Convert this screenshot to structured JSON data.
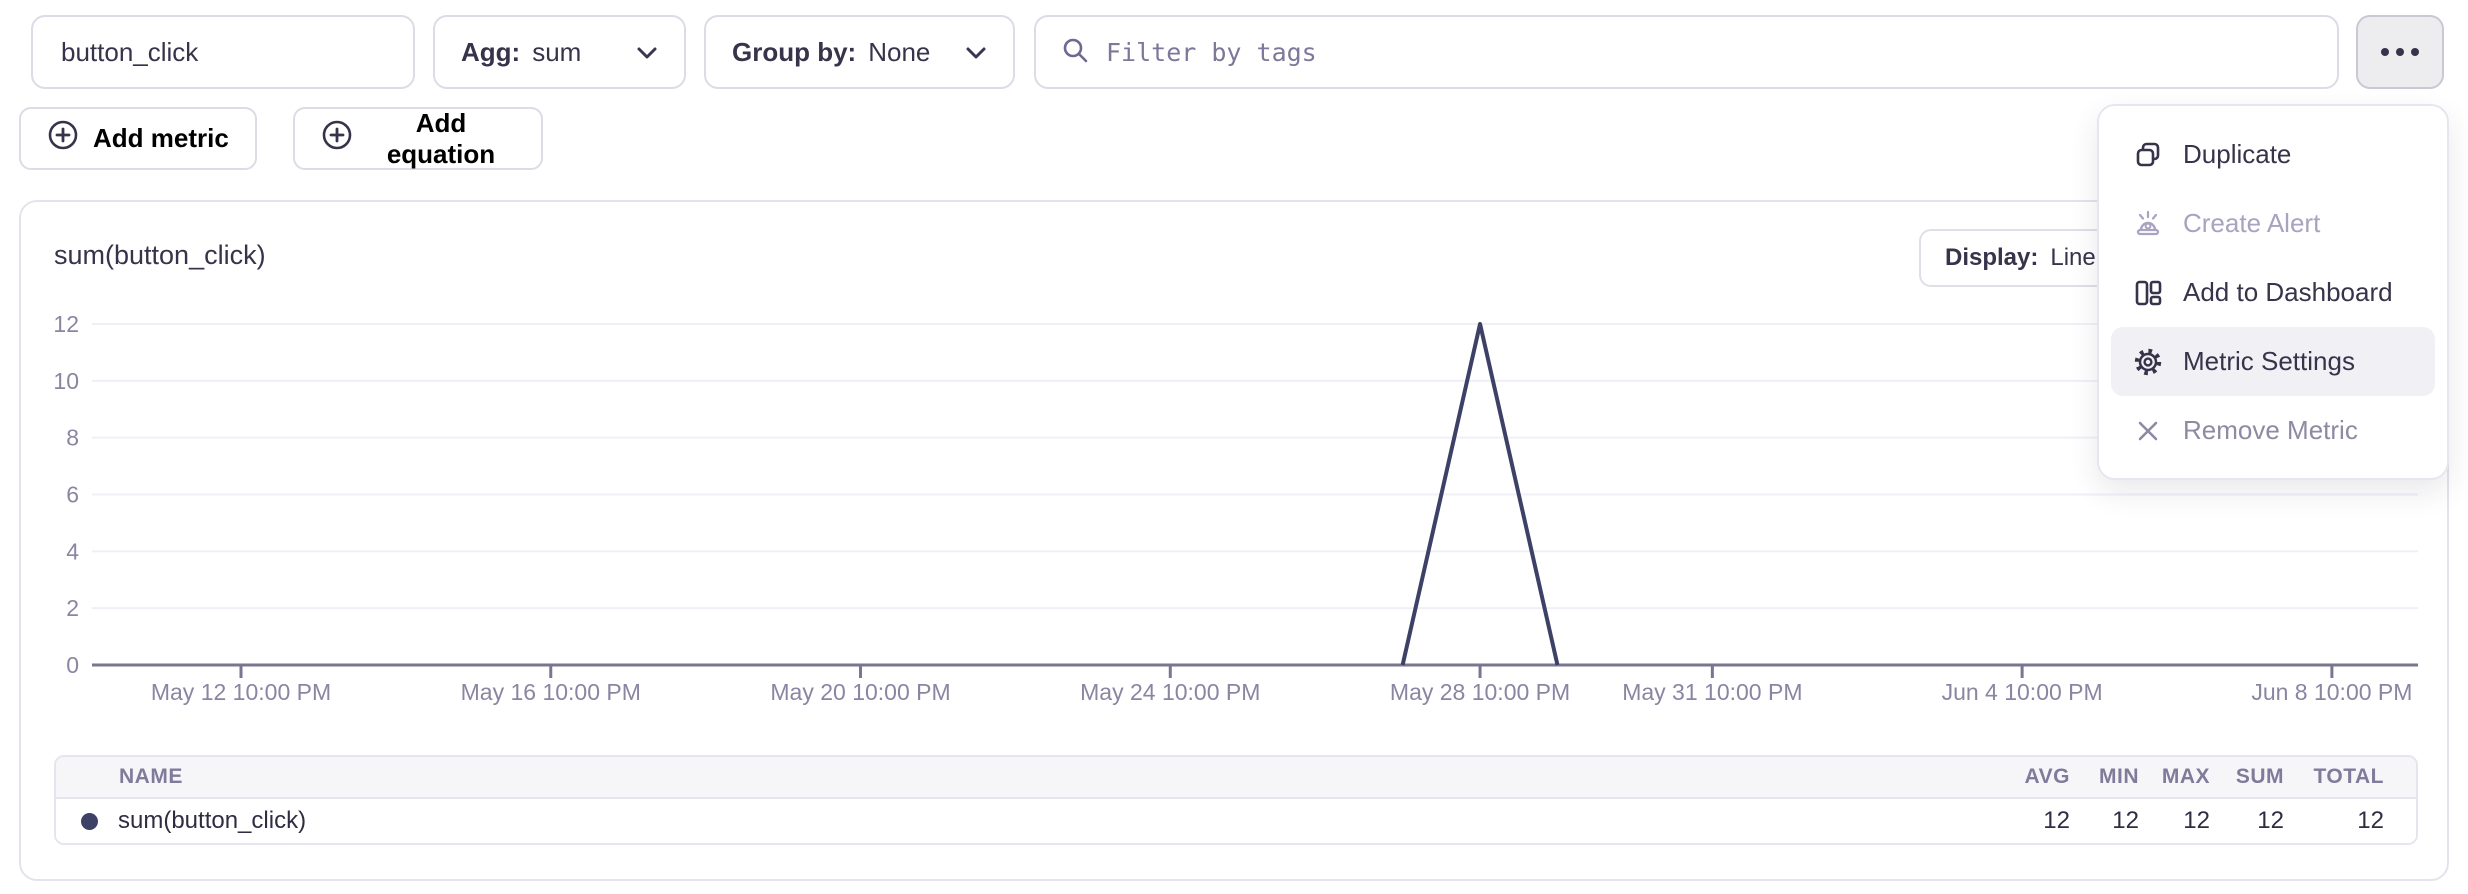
{
  "toolbar": {
    "metric_name": "button_click",
    "agg_label": "Agg:",
    "agg_value": "sum",
    "group_by_label": "Group by:",
    "group_by_value": "None",
    "filter_placeholder": "Filter by tags",
    "add_metric_label": "Add metric",
    "add_equation_label": "Add equation",
    "more_icon": "horizontal-ellipsis"
  },
  "menu": {
    "items": [
      {
        "label": "Duplicate",
        "icon": "copy-icon",
        "disabled": false,
        "highlighted": false
      },
      {
        "label": "Create Alert",
        "icon": "alert-icon",
        "disabled": true,
        "highlighted": false
      },
      {
        "label": "Add to Dashboard",
        "icon": "dashboard-icon",
        "disabled": false,
        "highlighted": false
      },
      {
        "label": "Metric Settings",
        "icon": "gear-icon",
        "disabled": false,
        "highlighted": true
      },
      {
        "label": "Remove Metric",
        "icon": "x-icon",
        "disabled": true,
        "highlighted": false
      }
    ]
  },
  "chart": {
    "title": "sum(button_click)",
    "display_label": "Display:",
    "display_value": "Line",
    "line_color": "#3d4166",
    "axis_color": "#7b7591",
    "grid_color": "#f1eff6",
    "tick_text_color": "#8b85a2"
  },
  "chart_data": {
    "type": "line",
    "title": "sum(button_click)",
    "xlabel": "",
    "ylabel": "",
    "ylim": [
      0,
      12
    ],
    "yticks": [
      0,
      2,
      4,
      6,
      8,
      10,
      12
    ],
    "grid": true,
    "legend": false,
    "x_range_days": [
      0,
      27.5
    ],
    "x_ticks": [
      {
        "label": "May 12 10:00 PM",
        "day": 0
      },
      {
        "label": "May 16 10:00 PM",
        "day": 4
      },
      {
        "label": "May 20 10:00 PM",
        "day": 8
      },
      {
        "label": "May 24 10:00 PM",
        "day": 12
      },
      {
        "label": "May 28 10:00 PM",
        "day": 16
      },
      {
        "label": "May 31 10:00 PM",
        "day": 19
      },
      {
        "label": "Jun 4 10:00 PM",
        "day": 23
      },
      {
        "label": "Jun 8 10:00 PM",
        "day": 27
      }
    ],
    "series": [
      {
        "name": "sum(button_click)",
        "color": "#3d4166",
        "points": [
          {
            "day": 15,
            "value": 0
          },
          {
            "day": 16,
            "value": 12
          },
          {
            "day": 17,
            "value": 0
          }
        ]
      }
    ]
  },
  "summary_table": {
    "columns": [
      "NAME",
      "AVG",
      "MIN",
      "MAX",
      "SUM",
      "TOTAL"
    ],
    "rows": [
      {
        "name": "sum(button_click)",
        "avg": "12",
        "min": "12",
        "max": "12",
        "sum": "12",
        "total": "12",
        "dot_color": "#3d4166"
      }
    ]
  }
}
